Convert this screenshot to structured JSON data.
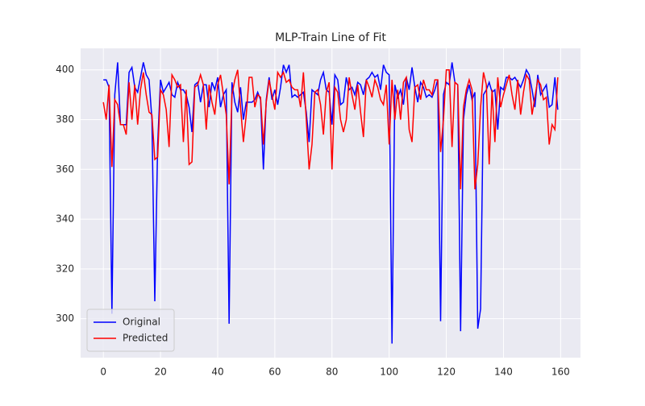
{
  "chart_data": {
    "type": "line",
    "title": "MLP-Train Line of Fit",
    "x": [
      0,
      1,
      2,
      3,
      4,
      5,
      6,
      7,
      8,
      9,
      10,
      11,
      12,
      13,
      14,
      15,
      16,
      17,
      18,
      19,
      20,
      21,
      22,
      23,
      24,
      25,
      26,
      27,
      28,
      29,
      30,
      31,
      32,
      33,
      34,
      35,
      36,
      37,
      38,
      39,
      40,
      41,
      42,
      43,
      44,
      45,
      46,
      47,
      48,
      49,
      50,
      51,
      52,
      53,
      54,
      55,
      56,
      57,
      58,
      59,
      60,
      61,
      62,
      63,
      64,
      65,
      66,
      67,
      68,
      69,
      70,
      71,
      72,
      73,
      74,
      75,
      76,
      77,
      78,
      79,
      80,
      81,
      82,
      83,
      84,
      85,
      86,
      87,
      88,
      89,
      90,
      91,
      92,
      93,
      94,
      95,
      96,
      97,
      98,
      99,
      100,
      101,
      102,
      103,
      104,
      105,
      106,
      107,
      108,
      109,
      110,
      111,
      112,
      113,
      114,
      115,
      116,
      117,
      118,
      119,
      120,
      121,
      122,
      123,
      124,
      125,
      126,
      127,
      128,
      129,
      130,
      131,
      132,
      133,
      134,
      135,
      136,
      137,
      138,
      139,
      140,
      141,
      142,
      143,
      144,
      145,
      146,
      147,
      148,
      149,
      150,
      151,
      152,
      153,
      154,
      155,
      156,
      157,
      158,
      159
    ],
    "series": [
      {
        "name": "Original",
        "color": "#0000ff",
        "values": [
          396,
          396,
          393,
          302,
          390,
          403,
          378,
          378,
          378,
          399,
          401,
          393,
          391,
          397,
          403,
          398,
          396,
          380,
          307,
          370,
          396,
          391,
          393,
          395,
          390,
          389,
          395,
          392,
          392,
          390,
          385,
          375,
          394,
          395,
          387,
          394,
          394,
          385,
          395,
          392,
          397,
          385,
          390,
          392,
          298,
          395,
          387,
          383,
          393,
          380,
          387,
          387,
          387,
          388,
          391,
          388,
          360,
          388,
          397,
          388,
          392,
          386,
          393,
          402,
          399,
          402,
          389,
          390,
          389,
          390,
          391,
          383,
          371,
          392,
          391,
          390,
          396,
          399,
          392,
          391,
          378,
          398,
          396,
          386,
          387,
          397,
          392,
          393,
          390,
          395,
          394,
          390,
          396,
          397,
          399,
          397,
          398,
          392,
          402,
          399,
          398,
          290,
          394,
          389,
          392,
          386,
          397,
          392,
          401,
          393,
          387,
          395,
          393,
          389,
          390,
          389,
          392,
          396,
          299,
          390,
          395,
          394,
          403,
          395,
          394,
          295,
          380,
          390,
          394,
          388,
          391,
          296,
          304,
          390,
          392,
          395,
          391,
          392,
          376,
          393,
          392,
          397,
          397,
          396,
          397,
          395,
          393,
          396,
          400,
          398,
          392,
          385,
          398,
          390,
          392,
          394,
          385,
          386,
          397,
          384
        ]
      },
      {
        "name": "Predicted",
        "color": "#ff0000",
        "values": [
          387,
          380,
          394,
          361,
          388,
          386,
          378,
          378,
          374,
          395,
          380,
          394,
          378,
          392,
          399,
          390,
          383,
          382,
          364,
          365,
          392,
          390,
          384,
          369,
          398,
          396,
          393,
          394,
          371,
          392,
          362,
          363,
          393,
          394,
          398,
          394,
          376,
          394,
          387,
          382,
          394,
          398,
          390,
          382,
          354,
          390,
          396,
          400,
          385,
          371,
          382,
          397,
          397,
          385,
          390,
          389,
          370,
          387,
          396,
          390,
          384,
          399,
          397,
          399,
          395,
          396,
          393,
          392,
          392,
          385,
          399,
          380,
          360,
          370,
          391,
          392,
          386,
          374,
          391,
          395,
          360,
          393,
          391,
          380,
          375,
          380,
          397,
          390,
          384,
          394,
          383,
          373,
          396,
          393,
          389,
          396,
          393,
          388,
          386,
          394,
          370,
          396,
          380,
          392,
          380,
          395,
          397,
          376,
          371,
          393,
          394,
          388,
          396,
          392,
          392,
          390,
          396,
          396,
          367,
          380,
          400,
          400,
          369,
          395,
          394,
          352,
          385,
          392,
          396,
          392,
          352,
          362,
          385,
          399,
          394,
          362,
          392,
          371,
          397,
          385,
          390,
          394,
          398,
          390,
          384,
          396,
          382,
          391,
          398,
          396,
          382,
          389,
          396,
          394,
          388,
          389,
          370,
          378,
          376,
          397
        ]
      }
    ],
    "xlim": [
      -7.95,
      166.95
    ],
    "ylim": [
      284.35,
      408.65
    ],
    "xticks": [
      0,
      20,
      40,
      60,
      80,
      100,
      120,
      140,
      160
    ],
    "yticks": [
      300,
      320,
      340,
      360,
      380,
      400
    ],
    "grid": true,
    "legend": "lower left"
  }
}
